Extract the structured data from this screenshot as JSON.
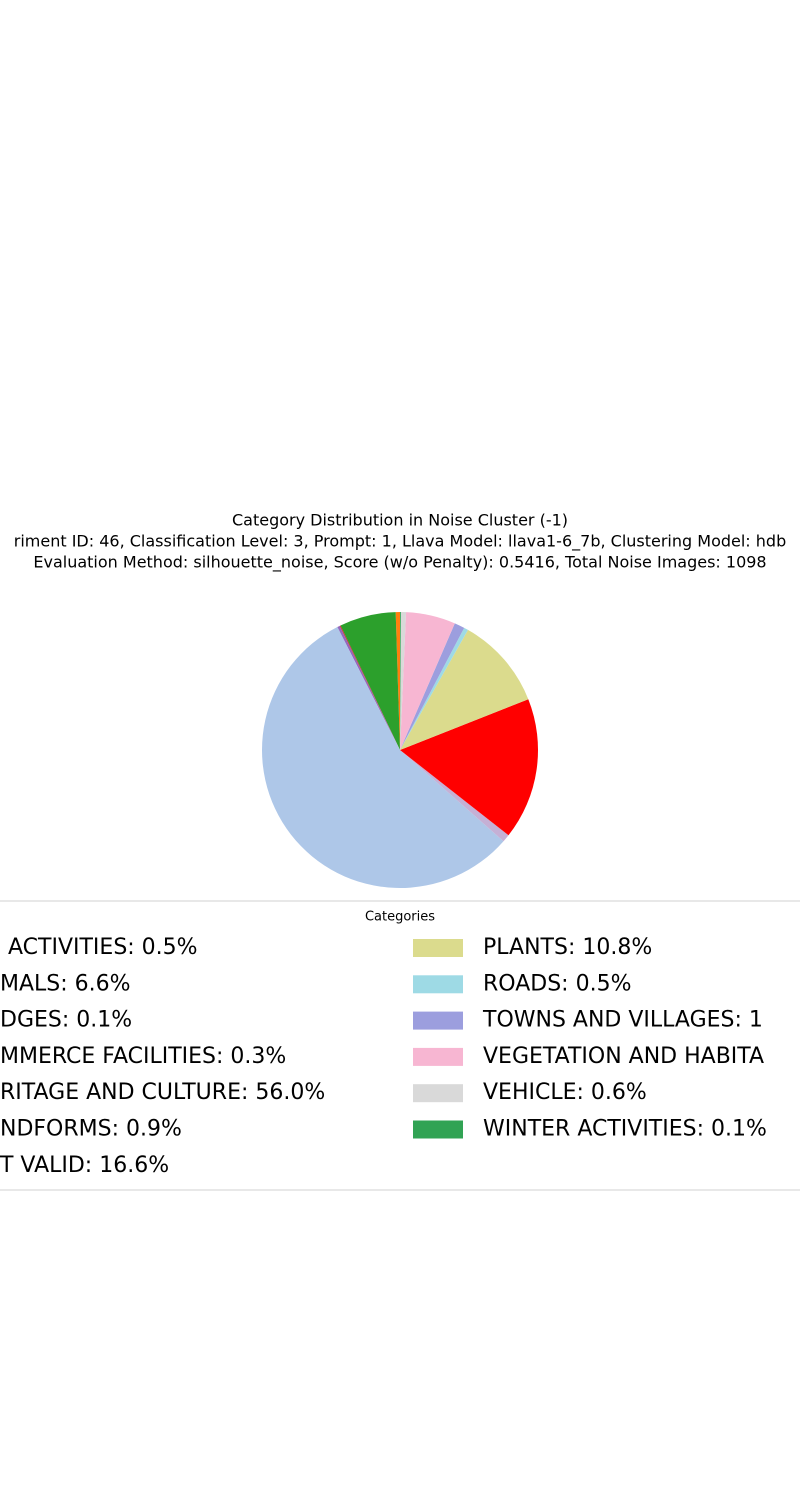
{
  "chart_data": {
    "type": "pie",
    "title": "Category Distribution in Noise Cluster (-1)",
    "subtitle": "riment ID: 46, Classification Level: 3, Prompt: 1, Llava Model: llava1-6_7b, Clustering Model: hdb",
    "subtitle2": "Evaluation Method: silhouette_noise, Score (w/o Penalty): 0.5416, Total Noise Images: 1098",
    "legend_title": "Categories",
    "labels": [
      "ACTIVITIES: 0.5%",
      "MALS: 6.6%",
      "DGES: 0.1%",
      "MMERCE FACILITIES: 0.3%",
      "RITAGE AND CULTURE: 56.0%",
      "NDFORMS: 0.9%",
      "T VALID: 16.6%",
      "PLANTS: 10.8%",
      "ROADS: 0.5%",
      "TOWNS AND VILLAGES: 1",
      "VEGETATION AND HABITA",
      "VEHICLE: 0.6%",
      "WINTER ACTIVITIES: 0.1%"
    ],
    "values": [
      0.5,
      6.6,
      0.1,
      0.3,
      56.0,
      0.9,
      16.6,
      10.8,
      0.5,
      1.2,
      5.8,
      0.6,
      0.1
    ],
    "colors": [
      "#ff7f0e",
      "#2ca02c",
      "#d62728",
      "#9467bd",
      "#aec7e8",
      "#c5b0d5",
      "#ff0000",
      "#dbdb8d",
      "#9edae5",
      "#9c9ede",
      "#f7b6d2",
      "#d9d9d9",
      "#31a354"
    ],
    "start_angle": 90,
    "counterclock": true
  }
}
